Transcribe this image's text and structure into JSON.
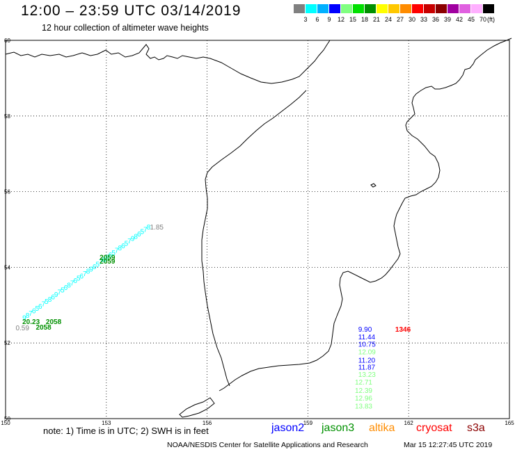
{
  "header": {
    "title": "12:00 – 23:59 UTC 03/14/2019",
    "subtitle": "12 hour collection of altimeter wave heights"
  },
  "colorbar": {
    "colors": [
      "#808080",
      "#00ffff",
      "#00b0ff",
      "#0000ff",
      "#80ff80",
      "#00e000",
      "#009000",
      "#ffff00",
      "#ffc800",
      "#ff8c00",
      "#ff0000",
      "#c80000",
      "#8b0000",
      "#a000a0",
      "#e060e0",
      "#ffb0ff",
      "#000000"
    ],
    "labels": [
      "3",
      "6",
      "9",
      "12",
      "15",
      "18",
      "21",
      "24",
      "27",
      "30",
      "33",
      "36",
      "39",
      "42",
      "45",
      "70"
    ],
    "unit": "(ft)"
  },
  "map": {
    "grid": true,
    "lon_range": [
      150,
      165
    ],
    "lat_range": [
      50,
      60
    ],
    "x_ticks": [
      "150",
      "153",
      "156",
      "159",
      "162",
      "165"
    ],
    "y_ticks": [
      "50",
      "52",
      "54",
      "56",
      "58",
      "60"
    ]
  },
  "observations": [
    {
      "label": "1.85",
      "lon": 154.3,
      "lat": 55.0,
      "color": "#808080"
    },
    {
      "label": "2059",
      "lon": 152.8,
      "lat": 54.2,
      "color": "#009000"
    },
    {
      "label": "2059",
      "lon": 152.8,
      "lat": 54.1,
      "color": "#009000"
    },
    {
      "label": "20.23",
      "lon": 150.5,
      "lat": 52.5,
      "color": "#009000"
    },
    {
      "label": "2058",
      "lon": 151.2,
      "lat": 52.5,
      "color": "#009000"
    },
    {
      "label": "2058",
      "lon": 150.9,
      "lat": 52.35,
      "color": "#009000"
    },
    {
      "label": "0.59",
      "lon": 150.3,
      "lat": 52.33,
      "color": "#808080"
    },
    {
      "label": "9.90",
      "lon": 160.5,
      "lat": 52.3,
      "color": "#0000ff"
    },
    {
      "label": "1346",
      "lon": 161.6,
      "lat": 52.3,
      "color": "#ff0000"
    },
    {
      "label": "11.44",
      "lon": 160.5,
      "lat": 52.1,
      "color": "#0000ff"
    },
    {
      "label": "10.75",
      "lon": 160.5,
      "lat": 51.9,
      "color": "#0000ff"
    },
    {
      "label": "12.09",
      "lon": 160.5,
      "lat": 51.7,
      "color": "#80ff80"
    },
    {
      "label": "11.20",
      "lon": 160.5,
      "lat": 51.48,
      "color": "#0000ff"
    },
    {
      "label": "11.87",
      "lon": 160.5,
      "lat": 51.3,
      "color": "#0000ff"
    },
    {
      "label": "13.23",
      "lon": 160.5,
      "lat": 51.1,
      "color": "#80ff80"
    },
    {
      "label": "12.71",
      "lon": 160.4,
      "lat": 50.9,
      "color": "#80ff80"
    },
    {
      "label": "12.39",
      "lon": 160.4,
      "lat": 50.68,
      "color": "#80ff80"
    },
    {
      "label": "12.96",
      "lon": 160.4,
      "lat": 50.48,
      "color": "#80ff80"
    },
    {
      "label": "13.83",
      "lon": 160.4,
      "lat": 50.27,
      "color": "#80ff80"
    }
  ],
  "track": {
    "color": "#00ffff",
    "start": {
      "lon": 150.5,
      "lat": 52.6
    },
    "end": {
      "lon": 154.2,
      "lat": 55.0
    },
    "labels": [
      "9",
      "8",
      "7",
      "6",
      "5",
      "6",
      "7",
      "5",
      "8",
      "6",
      "9",
      "7",
      "5",
      "6",
      "8",
      "7",
      "6",
      "5",
      "6",
      "7",
      "8",
      "9",
      "6",
      "5",
      "7",
      "8",
      "9",
      "6",
      "5",
      "7",
      "8",
      "6",
      "5",
      "7",
      "9",
      "8",
      "6",
      "5",
      "7",
      "8"
    ]
  },
  "footer": {
    "note": "note: 1) Time is in UTC; 2) SWH is in feet",
    "satellites": [
      {
        "name": "jason2",
        "color": "#0000ff"
      },
      {
        "name": "jason3",
        "color": "#009000"
      },
      {
        "name": "altika",
        "color": "#ff8c00"
      },
      {
        "name": "cryosat",
        "color": "#ff0000"
      },
      {
        "name": "s3a",
        "color": "#8b0000"
      }
    ],
    "credit": "NOAA/NESDIS Center for Satellite Applications and Research",
    "timestamp": "Mar 15 12:27:45 UTC 2019"
  }
}
